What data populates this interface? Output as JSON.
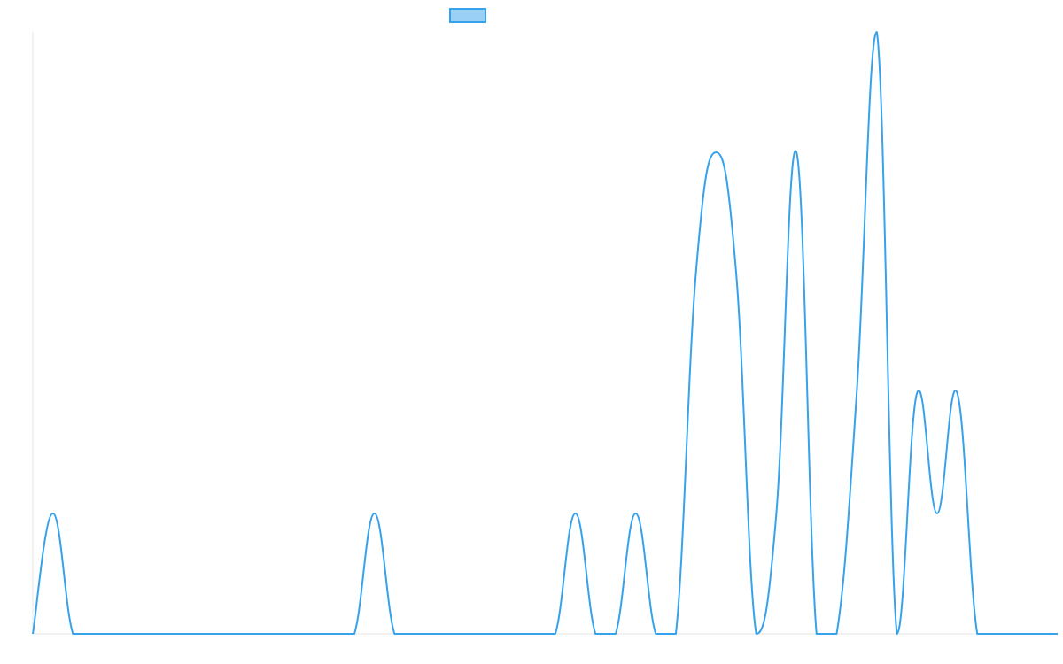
{
  "chart_data": {
    "type": "line",
    "title": "",
    "xlabel": "",
    "ylabel": "",
    "ylim": [
      0,
      5
    ],
    "grid": false,
    "legend": {
      "position": "top-center",
      "show_labels": false
    },
    "x": [
      0,
      1,
      2,
      3,
      4,
      5,
      6,
      7,
      8,
      9,
      10,
      11,
      12,
      13,
      14,
      15,
      16,
      17,
      18,
      19,
      20,
      21,
      22,
      23,
      24,
      25,
      26,
      27,
      28,
      29,
      30,
      31,
      32,
      33,
      34,
      35,
      36,
      37,
      38,
      39,
      40,
      41,
      42,
      43,
      44,
      45,
      46,
      47,
      48,
      49,
      50,
      51
    ],
    "series": [
      {
        "name": "",
        "color": "#36a2eb",
        "fill": "rgba(54,162,235,0.5)",
        "values": [
          0,
          1,
          0,
          0,
          0,
          0,
          0,
          0,
          0,
          0,
          0,
          0,
          0,
          0,
          0,
          0,
          0,
          1,
          0,
          0,
          0,
          0,
          0,
          0,
          0,
          0,
          0,
          1,
          0,
          0,
          1,
          0,
          0,
          3,
          4,
          3,
          0,
          1,
          4,
          0,
          0,
          2,
          5,
          0,
          2,
          1,
          2,
          0,
          0,
          0,
          0,
          0
        ]
      }
    ]
  }
}
